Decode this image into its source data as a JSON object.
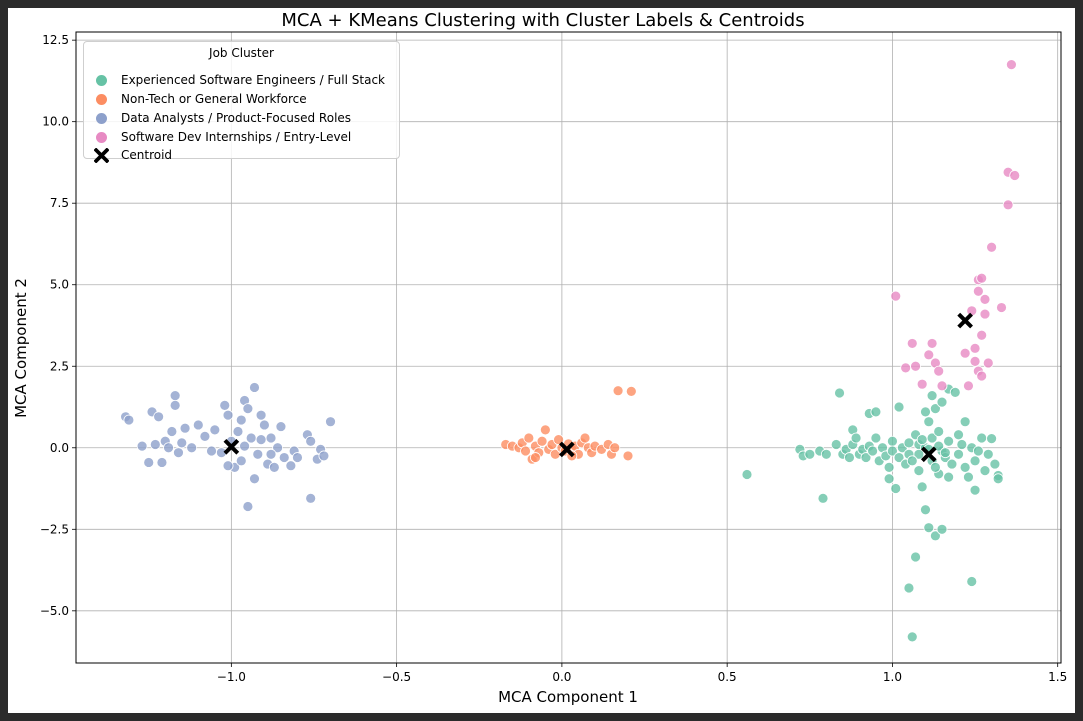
{
  "chart_data": {
    "type": "scatter",
    "title": "MCA + KMeans Clustering with Cluster Labels & Centroids",
    "xlabel": "MCA Component 1",
    "ylabel": "MCA Component 2",
    "xlim": [
      -1.47,
      1.51
    ],
    "ylim": [
      -6.6,
      12.75
    ],
    "xticks": [
      -1.0,
      -0.5,
      0.0,
      0.5,
      1.0,
      1.5
    ],
    "xtick_labels": [
      "−1.0",
      "−0.5",
      "0.0",
      "0.5",
      "1.0",
      "1.5"
    ],
    "yticks": [
      -5.0,
      -2.5,
      0.0,
      2.5,
      5.0,
      7.5,
      10.0,
      12.5
    ],
    "ytick_labels": [
      "−5.0",
      "−2.5",
      "0.0",
      "2.5",
      "5.0",
      "7.5",
      "10.0",
      "12.5"
    ],
    "grid": true,
    "legend": {
      "title": "Job Cluster",
      "placement": "top-left",
      "centroid_label": "Centroid"
    },
    "series": [
      {
        "name": "Experienced Software Engineers / Full Stack",
        "color": "#66c2a5",
        "points": [
          [
            0.56,
            -0.82
          ],
          [
            0.72,
            -0.05
          ],
          [
            0.73,
            -0.25
          ],
          [
            0.75,
            -0.2
          ],
          [
            0.78,
            -0.1
          ],
          [
            0.79,
            -1.55
          ],
          [
            0.8,
            -0.2
          ],
          [
            0.83,
            0.1
          ],
          [
            0.84,
            1.68
          ],
          [
            0.85,
            -0.2
          ],
          [
            0.86,
            -0.05
          ],
          [
            0.87,
            -0.3
          ],
          [
            0.88,
            0.55
          ],
          [
            0.88,
            0.1
          ],
          [
            0.89,
            0.3
          ],
          [
            0.9,
            -0.2
          ],
          [
            0.91,
            -0.05
          ],
          [
            0.92,
            -0.3
          ],
          [
            0.93,
            0.05
          ],
          [
            0.93,
            1.05
          ],
          [
            0.94,
            -0.1
          ],
          [
            0.95,
            1.1
          ],
          [
            0.95,
            0.3
          ],
          [
            0.96,
            -0.4
          ],
          [
            0.97,
            0.0
          ],
          [
            0.98,
            -0.25
          ],
          [
            0.99,
            -0.6
          ],
          [
            0.99,
            -0.95
          ],
          [
            1.0,
            0.2
          ],
          [
            1.0,
            -0.1
          ],
          [
            1.01,
            -1.25
          ],
          [
            1.02,
            1.25
          ],
          [
            1.02,
            -0.3
          ],
          [
            1.03,
            0.0
          ],
          [
            1.04,
            -0.5
          ],
          [
            1.05,
            -0.2
          ],
          [
            1.05,
            -4.3
          ],
          [
            1.06,
            -5.8
          ],
          [
            1.07,
            -3.35
          ],
          [
            1.07,
            0.4
          ],
          [
            1.08,
            0.1
          ],
          [
            1.08,
            -0.7
          ],
          [
            1.09,
            -1.2
          ],
          [
            1.1,
            -1.9
          ],
          [
            1.1,
            1.1
          ],
          [
            1.1,
            0.0
          ],
          [
            1.11,
            -2.45
          ],
          [
            1.11,
            0.8
          ],
          [
            1.12,
            -0.4
          ],
          [
            1.12,
            1.6
          ],
          [
            1.12,
            0.3
          ],
          [
            1.13,
            -2.7
          ],
          [
            1.13,
            1.2
          ],
          [
            1.14,
            -0.8
          ],
          [
            1.14,
            0.5
          ],
          [
            1.15,
            -0.1
          ],
          [
            1.15,
            1.4
          ],
          [
            1.15,
            -2.5
          ],
          [
            1.16,
            -0.3
          ],
          [
            1.17,
            1.8
          ],
          [
            1.17,
            0.2
          ],
          [
            1.18,
            -0.5
          ],
          [
            1.19,
            1.7
          ],
          [
            1.2,
            -0.2
          ],
          [
            1.21,
            0.1
          ],
          [
            1.22,
            0.8
          ],
          [
            1.22,
            -0.6
          ],
          [
            1.23,
            -0.9
          ],
          [
            1.24,
            -4.1
          ],
          [
            1.24,
            0.0
          ],
          [
            1.25,
            -0.4
          ],
          [
            1.25,
            -1.3
          ],
          [
            1.26,
            -0.1
          ],
          [
            1.27,
            0.3
          ],
          [
            1.28,
            -0.7
          ],
          [
            1.29,
            -0.2
          ],
          [
            1.3,
            0.28
          ],
          [
            1.31,
            -0.5
          ],
          [
            1.32,
            -0.85
          ],
          [
            1.32,
            -0.95
          ],
          [
            1.08,
            -0.2
          ],
          [
            1.13,
            -0.6
          ],
          [
            1.17,
            -0.9
          ],
          [
            1.2,
            0.4
          ],
          [
            1.09,
            0.25
          ],
          [
            1.05,
            0.15
          ],
          [
            1.11,
            -0.05
          ],
          [
            1.14,
            0.05
          ],
          [
            1.16,
            -0.15
          ],
          [
            1.06,
            -0.4
          ]
        ]
      },
      {
        "name": "Non-Tech or General Workforce",
        "color": "#fc8d62",
        "points": [
          [
            -0.17,
            0.1
          ],
          [
            -0.15,
            0.05
          ],
          [
            -0.13,
            0.0
          ],
          [
            -0.12,
            0.15
          ],
          [
            -0.11,
            -0.1
          ],
          [
            -0.1,
            0.3
          ],
          [
            -0.09,
            -0.35
          ],
          [
            -0.08,
            0.05
          ],
          [
            -0.07,
            -0.15
          ],
          [
            -0.06,
            0.2
          ],
          [
            -0.05,
            0.55
          ],
          [
            -0.04,
            -0.05
          ],
          [
            -0.03,
            0.1
          ],
          [
            -0.02,
            -0.2
          ],
          [
            0.0,
            0.0
          ],
          [
            0.01,
            -0.1
          ],
          [
            0.02,
            0.12
          ],
          [
            0.03,
            -0.05
          ],
          [
            0.04,
            0.05
          ],
          [
            0.05,
            -0.2
          ],
          [
            0.06,
            0.15
          ],
          [
            0.07,
            0.3
          ],
          [
            0.08,
            0.0
          ],
          [
            0.09,
            -0.15
          ],
          [
            0.1,
            0.05
          ],
          [
            0.12,
            -0.05
          ],
          [
            0.14,
            0.1
          ],
          [
            0.15,
            -0.2
          ],
          [
            0.16,
            0.0
          ],
          [
            0.17,
            1.75
          ],
          [
            0.2,
            -0.25
          ],
          [
            0.21,
            1.73
          ],
          [
            -0.01,
            0.25
          ],
          [
            0.03,
            -0.25
          ],
          [
            -0.08,
            -0.3
          ]
        ]
      },
      {
        "name": "Data Analysts / Product-Focused Roles",
        "color": "#8da0cb",
        "points": [
          [
            -1.32,
            0.95
          ],
          [
            -1.31,
            0.85
          ],
          [
            -1.27,
            0.05
          ],
          [
            -1.25,
            -0.45
          ],
          [
            -1.24,
            1.1
          ],
          [
            -1.23,
            0.1
          ],
          [
            -1.22,
            0.95
          ],
          [
            -1.21,
            -0.45
          ],
          [
            -1.2,
            0.2
          ],
          [
            -1.19,
            0.0
          ],
          [
            -1.18,
            0.5
          ],
          [
            -1.17,
            1.3
          ],
          [
            -1.17,
            1.6
          ],
          [
            -1.16,
            -0.15
          ],
          [
            -1.15,
            0.15
          ],
          [
            -1.14,
            0.6
          ],
          [
            -1.12,
            0.0
          ],
          [
            -1.1,
            0.7
          ],
          [
            -1.05,
            0.55
          ],
          [
            -1.03,
            -0.15
          ],
          [
            -1.02,
            1.3
          ],
          [
            -1.01,
            1.0
          ],
          [
            -1.0,
            0.2
          ],
          [
            -0.99,
            -0.6
          ],
          [
            -0.98,
            0.5
          ],
          [
            -0.97,
            0.85
          ],
          [
            -0.96,
            1.45
          ],
          [
            -0.95,
            1.2
          ],
          [
            -0.95,
            -1.8
          ],
          [
            -0.94,
            0.3
          ],
          [
            -0.93,
            1.85
          ],
          [
            -0.92,
            -0.2
          ],
          [
            -0.91,
            1.0
          ],
          [
            -0.9,
            0.7
          ],
          [
            -0.89,
            -0.5
          ],
          [
            -0.88,
            0.3
          ],
          [
            -0.87,
            -0.6
          ],
          [
            -0.86,
            0.0
          ],
          [
            -0.85,
            0.65
          ],
          [
            -0.84,
            -0.3
          ],
          [
            -0.82,
            -0.55
          ],
          [
            -0.81,
            -0.1
          ],
          [
            -0.8,
            -0.3
          ],
          [
            -0.77,
            0.4
          ],
          [
            -0.76,
            0.2
          ],
          [
            -0.76,
            -1.55
          ],
          [
            -0.74,
            -0.35
          ],
          [
            -0.73,
            -0.05
          ],
          [
            -0.72,
            -0.25
          ],
          [
            -0.7,
            0.8
          ],
          [
            -0.93,
            -0.95
          ],
          [
            -1.06,
            -0.1
          ],
          [
            -0.97,
            -0.4
          ],
          [
            -0.91,
            0.25
          ],
          [
            -1.08,
            0.35
          ],
          [
            -0.88,
            -0.2
          ],
          [
            -1.01,
            -0.55
          ],
          [
            -0.96,
            0.05
          ]
        ]
      },
      {
        "name": "Software Dev Internships / Entry-Level",
        "color": "#e78ac3",
        "points": [
          [
            1.01,
            4.65
          ],
          [
            1.04,
            2.45
          ],
          [
            1.06,
            3.2
          ],
          [
            1.07,
            2.5
          ],
          [
            1.09,
            1.95
          ],
          [
            1.11,
            2.85
          ],
          [
            1.12,
            3.2
          ],
          [
            1.13,
            2.6
          ],
          [
            1.14,
            2.35
          ],
          [
            1.15,
            1.9
          ],
          [
            1.22,
            2.9
          ],
          [
            1.23,
            1.9
          ],
          [
            1.24,
            4.2
          ],
          [
            1.25,
            3.05
          ],
          [
            1.25,
            2.65
          ],
          [
            1.26,
            2.35
          ],
          [
            1.26,
            4.8
          ],
          [
            1.26,
            5.15
          ],
          [
            1.27,
            5.2
          ],
          [
            1.27,
            3.45
          ],
          [
            1.27,
            2.2
          ],
          [
            1.28,
            4.1
          ],
          [
            1.28,
            4.55
          ],
          [
            1.29,
            2.6
          ],
          [
            1.3,
            6.15
          ],
          [
            1.33,
            4.3
          ],
          [
            1.35,
            8.45
          ],
          [
            1.35,
            7.45
          ],
          [
            1.36,
            11.75
          ],
          [
            1.37,
            8.35
          ]
        ]
      }
    ],
    "centroids": [
      {
        "x": -1.0,
        "y": 0.03
      },
      {
        "x": 0.015,
        "y": -0.05
      },
      {
        "x": 1.11,
        "y": -0.2
      },
      {
        "x": 1.22,
        "y": 3.9
      }
    ]
  }
}
